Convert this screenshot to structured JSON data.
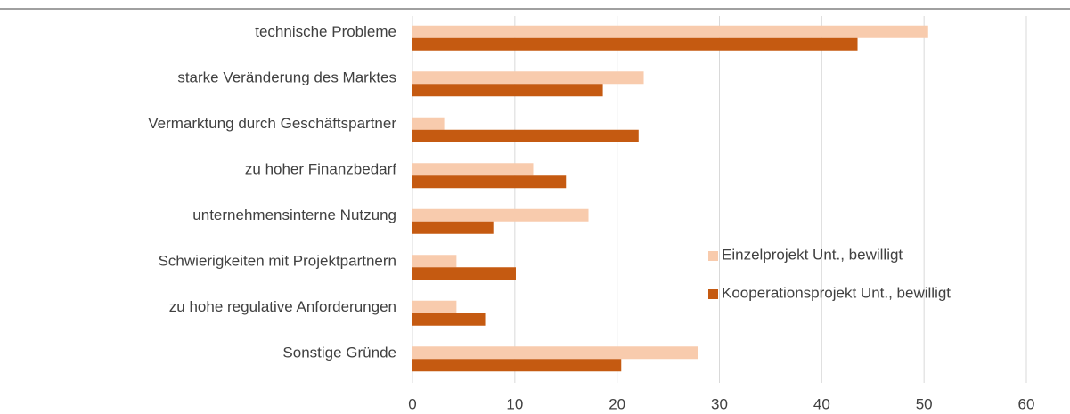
{
  "chart_data": {
    "type": "barh",
    "categories": [
      "technische Probleme",
      "starke Veränderung des Marktes",
      "Vermarktung durch Geschäftspartner",
      "zu hoher Finanzbedarf",
      "unternehmensinterne Nutzung",
      "Schwierigkeiten mit Projektpartnern",
      "zu hohe regulative Anforderungen",
      "Sonstige Gründe"
    ],
    "series": [
      {
        "name": "Einzelprojekt Unt., bewilligt",
        "color": "#f8cbad",
        "values": [
          50.4,
          22.6,
          3.1,
          11.8,
          17.2,
          4.3,
          4.3,
          27.9
        ]
      },
      {
        "name": "Kooperationsprojekt Unt., bewilligt",
        "color": "#c55a11",
        "values": [
          43.5,
          18.6,
          22.1,
          15.0,
          7.9,
          10.1,
          7.1,
          20.4
        ]
      }
    ],
    "xlim": [
      0,
      60
    ],
    "xticks": [
      0,
      10,
      20,
      30,
      40,
      50,
      60
    ],
    "grid": true,
    "legend": "right"
  }
}
